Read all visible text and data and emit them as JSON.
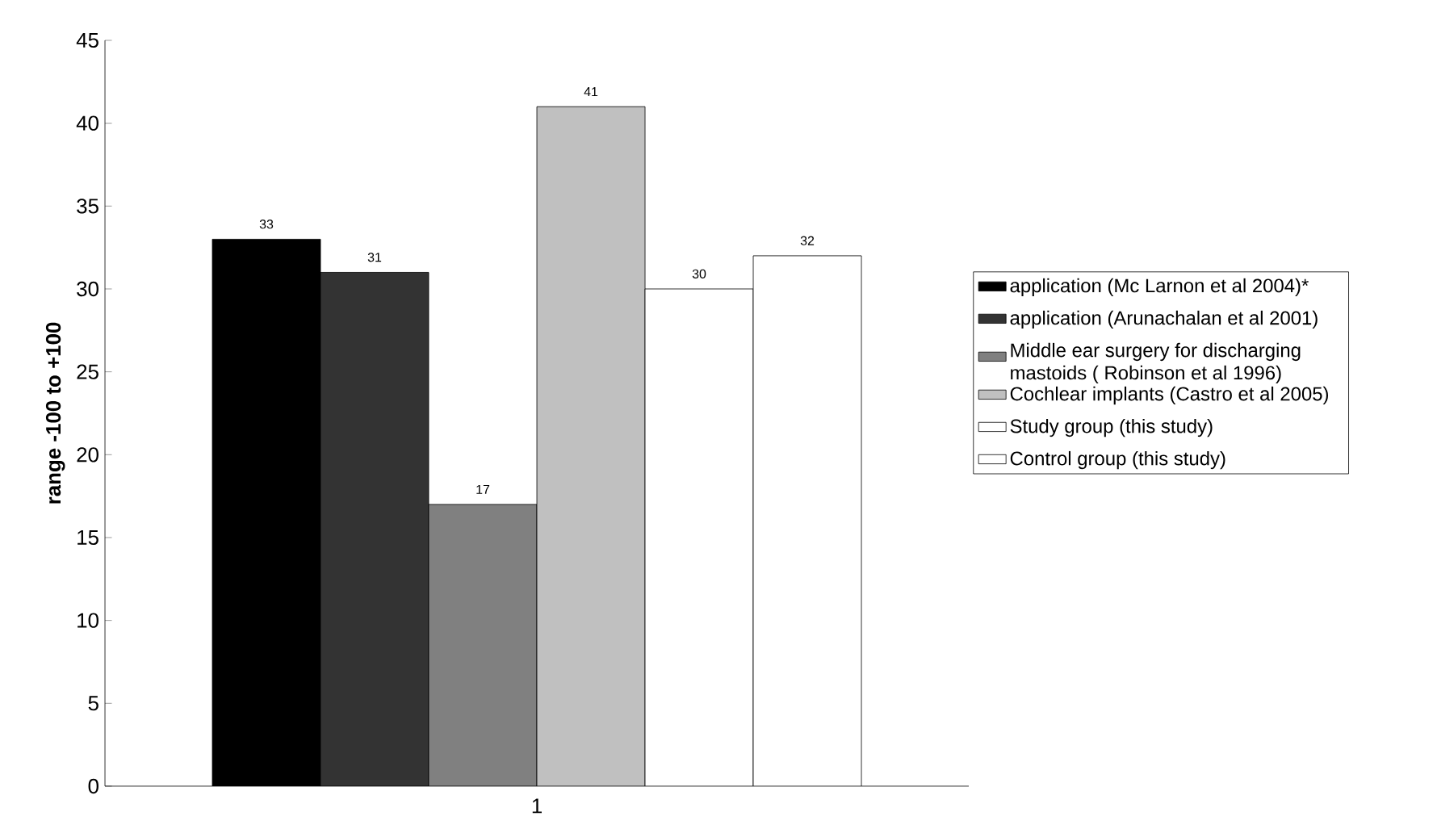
{
  "chart_data": {
    "type": "bar",
    "categories": [
      "1"
    ],
    "ylabel": "range -100 to +100",
    "ylim": [
      0,
      45
    ],
    "yticks": [
      0,
      5,
      10,
      15,
      20,
      25,
      30,
      35,
      40,
      45
    ],
    "data_labels": true,
    "legend": "right",
    "grid": false,
    "series": [
      {
        "name": "application (Mc Larnon et al 2004)*",
        "color": "#000000",
        "values": [
          33
        ]
      },
      {
        "name": "application (Arunachalan et al 2001)",
        "color": "#333333",
        "values": [
          31
        ]
      },
      {
        "name": "Middle ear surgery for discharging mastoids ( Robinson et al 1996)",
        "color": "#808080",
        "values": [
          17
        ]
      },
      {
        "name": "Cochlear implants (Castro et al 2005)",
        "color": "#c0c0c0",
        "values": [
          41
        ]
      },
      {
        "name": "Study group (this study)",
        "color": "#ffffff",
        "values": [
          30
        ]
      },
      {
        "name": "Control group (this study)",
        "color": "#ffffff",
        "values": [
          32
        ]
      }
    ]
  }
}
